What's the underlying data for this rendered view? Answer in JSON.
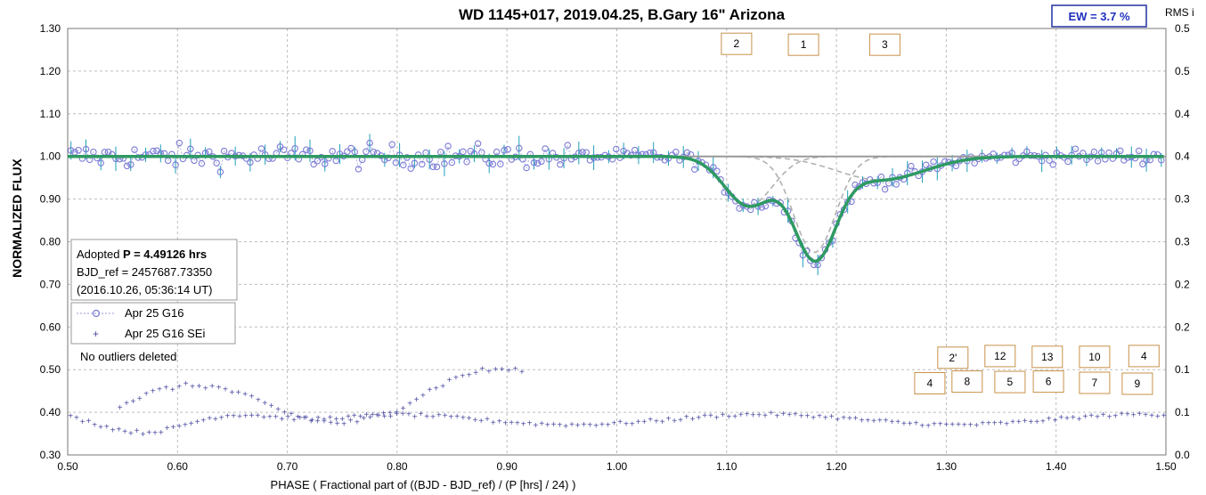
{
  "chart_data": {
    "type": "scatter",
    "title": "WD 1145+017, 2019.04.25, B.Gary 16\" Arizona",
    "xlabel": "PHASE ( Fractional part of ((BJD - BJD_ref) / (P [hrs] / 24) )",
    "ylabel": "NORMALIZED FLUX",
    "y2label": "RMS i",
    "xlim": [
      0.5,
      1.5
    ],
    "ylim": [
      0.3,
      1.3
    ],
    "y2lim": [
      0.0,
      0.5
    ],
    "xticks": [
      "0.50",
      "0.60",
      "0.70",
      "0.80",
      "0.90",
      "1.00",
      "1.10",
      "1.20",
      "1.30",
      "1.40",
      "1.50"
    ],
    "yticks": [
      "0.30",
      "0.40",
      "0.50",
      "0.60",
      "0.70",
      "0.80",
      "0.90",
      "1.00",
      "1.10",
      "1.20",
      "1.30"
    ],
    "y2ticks": [
      "0.0",
      "0.1",
      "0.1",
      "0.2",
      "0.2",
      "0.3",
      "0.3",
      "0.4",
      "0.4",
      "0.5",
      "0.5"
    ],
    "grid": true,
    "ew_box": "EW =  3.7 %",
    "info_box": {
      "line1_prefix": "Adopted ",
      "line1_bold": "P = 4.49126 hrs",
      "line2": "BJD_ref = 2457687.73350",
      "line3": "(2016.10.26, 05:36:14 UT)"
    },
    "legend": [
      "Apr 25 G16",
      "Apr 25 G16 SEi"
    ],
    "note": "No outliers deleted",
    "dip_labels": [
      {
        "text": "2",
        "x": 1.109,
        "y": 1.264
      },
      {
        "text": "1",
        "x": 1.17,
        "y": 1.262
      },
      {
        "text": "3",
        "x": 1.244,
        "y": 1.262
      },
      {
        "text": "2'",
        "x": 1.306,
        "y": 0.528
      },
      {
        "text": "12",
        "x": 1.349,
        "y": 0.532
      },
      {
        "text": "13",
        "x": 1.392,
        "y": 0.53
      },
      {
        "text": "10",
        "x": 1.435,
        "y": 0.53
      },
      {
        "text": "4",
        "x": 1.48,
        "y": 0.532
      },
      {
        "text": "4",
        "x": 1.285,
        "y": 0.468
      },
      {
        "text": "8",
        "x": 1.319,
        "y": 0.472
      },
      {
        "text": "5",
        "x": 1.358,
        "y": 0.471
      },
      {
        "text": "6",
        "x": 1.393,
        "y": 0.472
      },
      {
        "text": "7",
        "x": 1.435,
        "y": 0.469
      },
      {
        "text": "9",
        "x": 1.474,
        "y": 0.467
      }
    ],
    "model": {
      "baseline": 1.0,
      "dips": [
        {
          "center": 1.12,
          "depth": 0.115,
          "width": 0.022
        },
        {
          "center": 1.18,
          "depth": 0.225,
          "width": 0.019
        },
        {
          "center": 1.24,
          "depth": 0.055,
          "width": 0.04
        }
      ]
    },
    "series": [
      {
        "name": "Apr 25 G16",
        "kind": "flux",
        "x_range": [
          0.5,
          1.5
        ],
        "noise": 0.028
      },
      {
        "name": "Apr 25 G16 SEi",
        "kind": "rms",
        "x_range": [
          0.5,
          1.5
        ]
      }
    ],
    "colors": {
      "flux": "#7b7bd6",
      "flux_line": "#9a9ad9",
      "errorbar": "#1fa0b8",
      "model": "#2e9a62",
      "component": "#b0b0b0",
      "rms": "#4a4aa0",
      "label_border": "#c8924a",
      "ew_border": "#2030a0"
    }
  }
}
